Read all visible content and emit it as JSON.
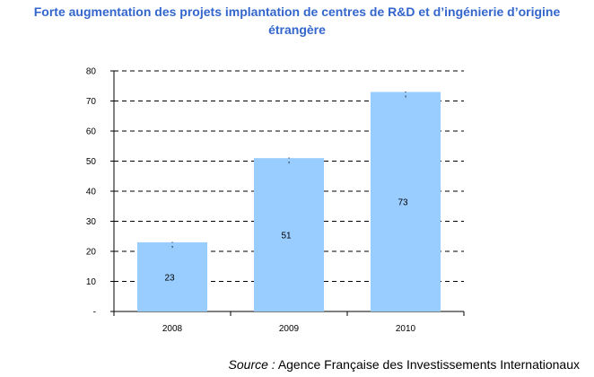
{
  "title_line1": "Forte augmentation des projets implantation de centres de R&D et d’ingénierie d’origine",
  "title_line2": "étrangère",
  "source_label": "Source :",
  "source_text": "Agence Française des Investissements Internationaux",
  "bar_color": "#99ccff",
  "chart_data": {
    "type": "bar",
    "title": "Forte augmentation des projets implantation de centres de R&D et d’ingénierie d’origine étrangère",
    "xlabel": "",
    "ylabel": "",
    "categories": [
      "2008",
      "2009",
      "2010"
    ],
    "values": [
      23,
      51,
      73
    ],
    "ylim": [
      0,
      80
    ],
    "y_ticks": [
      0,
      10,
      20,
      30,
      40,
      50,
      60,
      70,
      80
    ],
    "y_tick_labels": [
      "-",
      "10",
      "20",
      "30",
      "40",
      "50",
      "60",
      "70",
      "80"
    ],
    "bar_end_marks": [
      ";",
      ";",
      ";"
    ],
    "grid": true,
    "grid_style": "dashed",
    "legend": "none"
  }
}
